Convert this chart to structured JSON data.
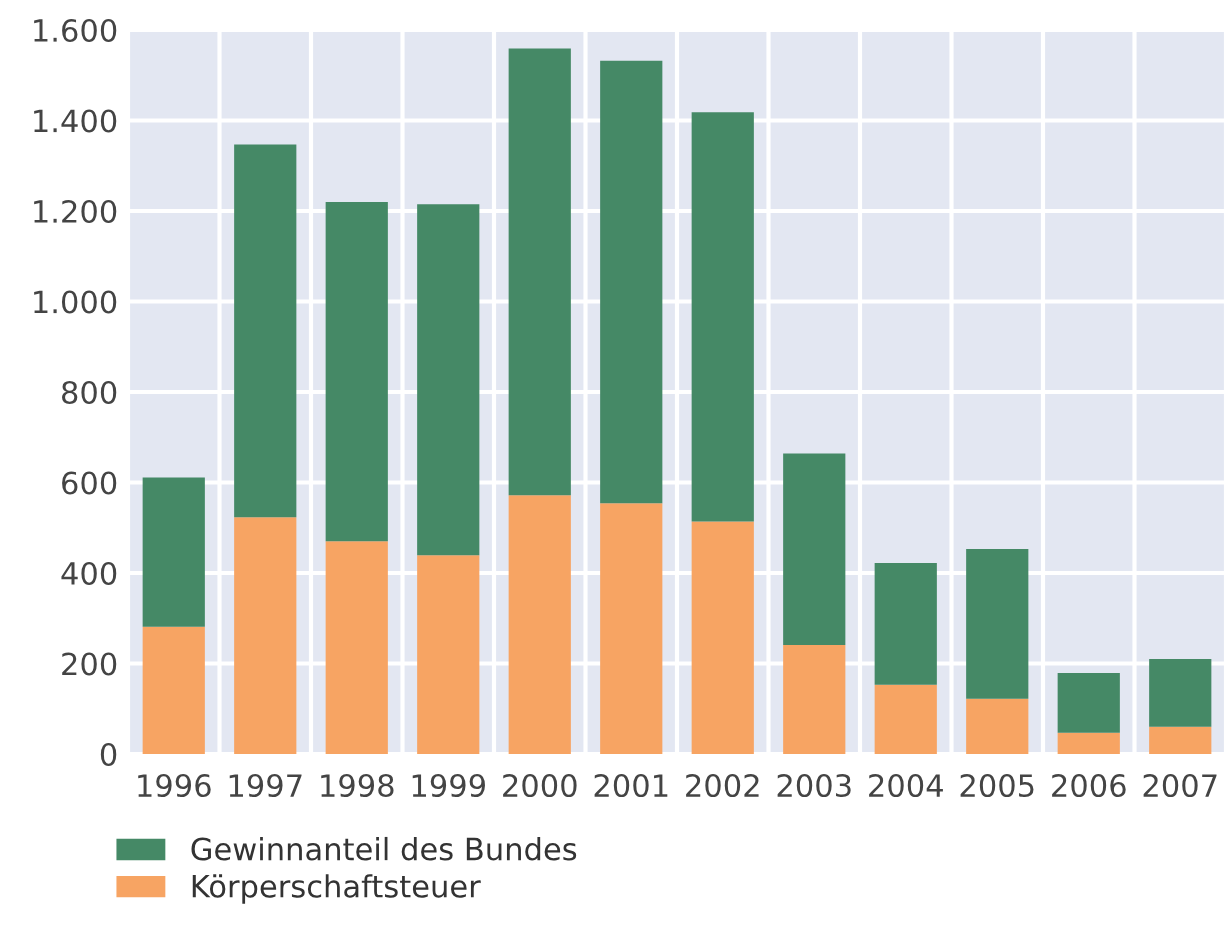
{
  "chart_data": {
    "type": "bar",
    "stacked": true,
    "categories": [
      "1996",
      "1997",
      "1998",
      "1999",
      "2000",
      "2001",
      "2002",
      "2003",
      "2004",
      "2005",
      "2006",
      "2007"
    ],
    "series": [
      {
        "name": "Körperschaftsteuer",
        "color": "#f7a463",
        "values": [
          281,
          523,
          470,
          439,
          572,
          554,
          514,
          241,
          153,
          122,
          47,
          60
        ]
      },
      {
        "name": "Gewinnanteil des Bundes",
        "color": "#458966",
        "values": [
          330,
          824,
          750,
          776,
          987,
          978,
          904,
          423,
          269,
          331,
          132,
          150
        ]
      }
    ],
    "ylim": [
      0,
      1600
    ],
    "yticks": [
      0,
      200,
      400,
      600,
      800,
      {
        "value": 1000,
        "label": "1.000"
      },
      {
        "value": 1200,
        "label": "1.200"
      },
      {
        "value": 1400,
        "label": "1.400"
      },
      {
        "value": 1600,
        "label": "1.600"
      }
    ],
    "grid": true,
    "legend": "bottom"
  }
}
